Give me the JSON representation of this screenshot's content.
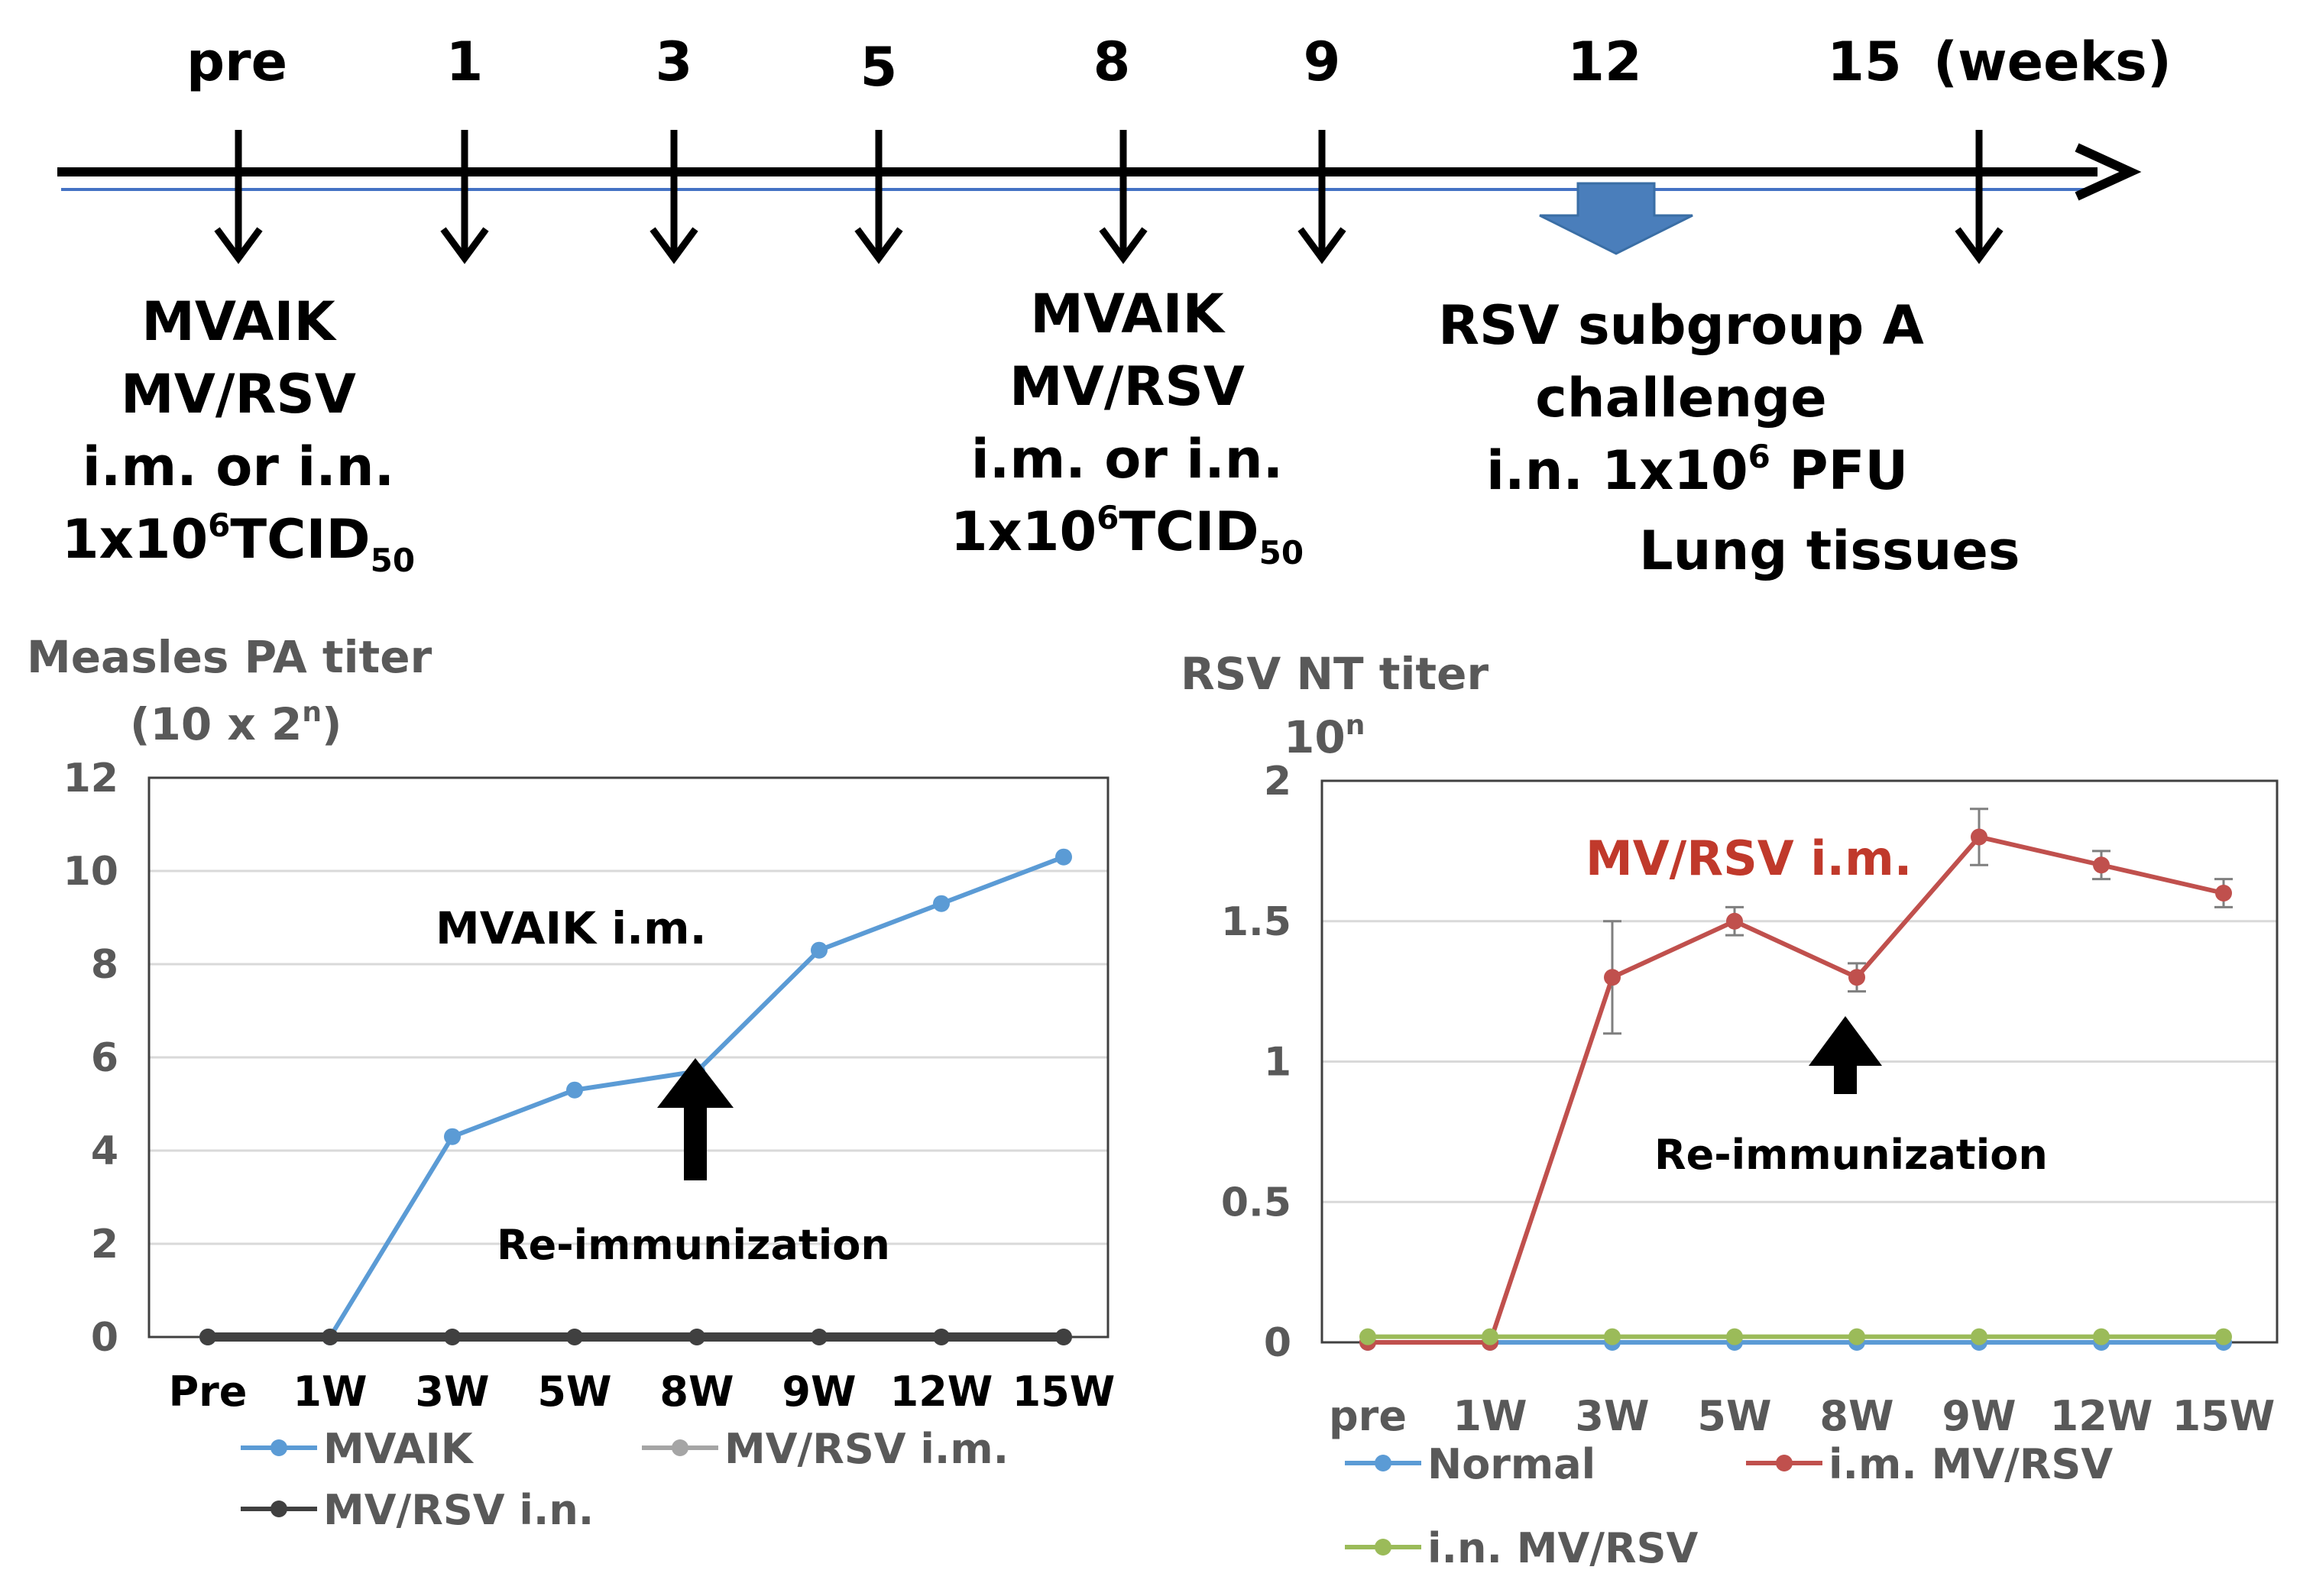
{
  "timeline": {
    "weeks": [
      "pre",
      "1",
      "3",
      "5",
      "8",
      "9",
      "12",
      "15"
    ],
    "unit": "(weeks)",
    "immunization1": {
      "lines": [
        "MVAIK",
        "MV/RSV",
        "i.m. or i.n."
      ],
      "dose_main": "1x10",
      "dose_sup": "6",
      "dose_unit": "TCID",
      "dose_sub": "50"
    },
    "immunization2": {
      "lines": [
        "MVAIK",
        "MV/RSV",
        "i.m. or i.n."
      ],
      "dose_main": "1x10",
      "dose_sup": "6",
      "dose_unit": "TCID",
      "dose_sub": "50"
    },
    "challenge": {
      "line1": "RSV subgroup A",
      "line2": "challenge",
      "dose_prefix": "i.n.  1x10",
      "dose_sup": "6",
      "dose_suffix": " PFU",
      "line4": "Lung tissues"
    },
    "colors": {
      "arrow": "#000000",
      "challenge_arrow": "#4a7ebb",
      "rule": "#4472c4"
    }
  },
  "chart_data": [
    {
      "type": "line",
      "title": "",
      "ylabel_line1": "Measles PA titer",
      "ylabel_line2_prefix": "(10 x 2",
      "ylabel_line2_sup": "n",
      "ylabel_line2_suffix": ")",
      "xlabel": "",
      "categories": [
        "Pre",
        "1W",
        "3W",
        "5W",
        "8W",
        "9W",
        "12W",
        "15W"
      ],
      "ylim": [
        0,
        12
      ],
      "yticks": [
        0,
        2,
        4,
        6,
        8,
        10,
        12
      ],
      "grid": true,
      "legend_placement": "bottom",
      "series": [
        {
          "name": "MVAIK",
          "values": [
            0,
            0,
            4.3,
            5.3,
            5.7,
            8.3,
            9.3,
            10.3
          ],
          "color": "#5b9bd5"
        },
        {
          "name": "MV/RSV i.m.",
          "values": [
            0,
            0,
            0,
            0,
            0,
            0,
            0,
            0
          ],
          "color": "#a5a5a5"
        },
        {
          "name": "MV/RSV i.n.",
          "values": [
            0,
            0,
            0,
            0,
            0,
            0,
            0,
            0
          ],
          "color": "#404040"
        }
      ],
      "annotations": {
        "series_label": "MVAIK   i.m.",
        "arrow_label": "Re-immunization"
      }
    },
    {
      "type": "line",
      "title": "",
      "ylabel_line1": "RSV NT titer",
      "ylabel_line2_prefix": "10",
      "ylabel_line2_sup": "n",
      "ylabel_line2_suffix": "",
      "xlabel": "",
      "categories": [
        "pre",
        "1W",
        "3W",
        "5W",
        "8W",
        "9W",
        "12W",
        "15W"
      ],
      "ylim": [
        0,
        2
      ],
      "yticks": [
        0,
        0.5,
        1,
        1.5,
        2
      ],
      "grid": true,
      "legend_placement": "bottom",
      "series": [
        {
          "name": "Normal",
          "values": [
            0,
            0,
            0,
            0,
            0,
            0,
            0,
            0
          ],
          "color": "#5b9bd5"
        },
        {
          "name": "i.m. MV/RSV",
          "values": [
            0,
            0,
            1.3,
            1.5,
            1.3,
            1.8,
            1.7,
            1.6
          ],
          "errors": [
            0,
            0,
            0.2,
            0.05,
            0.05,
            0.1,
            0.05,
            0.05
          ],
          "color": "#c0504d"
        },
        {
          "name": "i.n. MV/RSV",
          "values": [
            0.02,
            0.02,
            0.02,
            0.02,
            0.02,
            0.02,
            0.02,
            0.02
          ],
          "color": "#9bbb59"
        }
      ],
      "annotations": {
        "series_label": "MV/RSV i.m.",
        "arrow_label": "Re-immunization"
      }
    }
  ]
}
